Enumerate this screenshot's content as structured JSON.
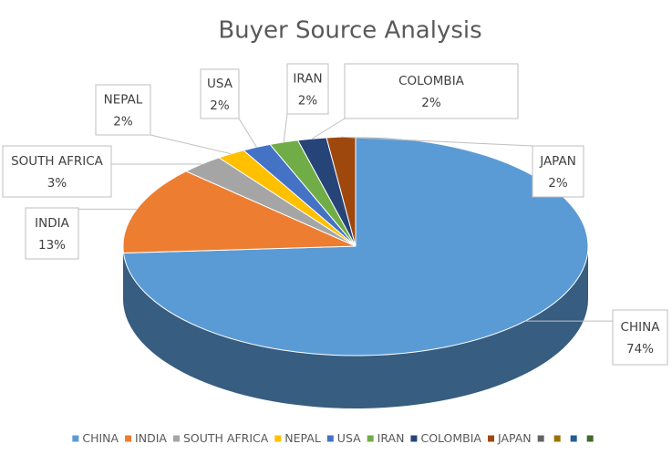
{
  "chart_data": {
    "type": "pie",
    "title": "Buyer Source Analysis",
    "categories": [
      "CHINA",
      "INDIA",
      "SOUTH AFRICA",
      "NEPAL",
      "USA",
      "IRAN",
      "COLOMBIA",
      "JAPAN",
      null,
      null,
      null,
      null
    ],
    "values": [
      74,
      13,
      3,
      2,
      2,
      2,
      2,
      2,
      0,
      0,
      0,
      0
    ],
    "value_labels": [
      "74%",
      "13%",
      "3%",
      "2%",
      "2%",
      "2%",
      "2%",
      "2%",
      null,
      null,
      null,
      null
    ],
    "colors": [
      "#5b9bd5",
      "#ed7d31",
      "#a5a5a5",
      "#ffc000",
      "#4472c4",
      "#70ad47",
      "#264478",
      "#9e480e",
      "#636363",
      "#997300",
      "#255e91",
      "#43682b"
    ],
    "legend": "bottom"
  }
}
